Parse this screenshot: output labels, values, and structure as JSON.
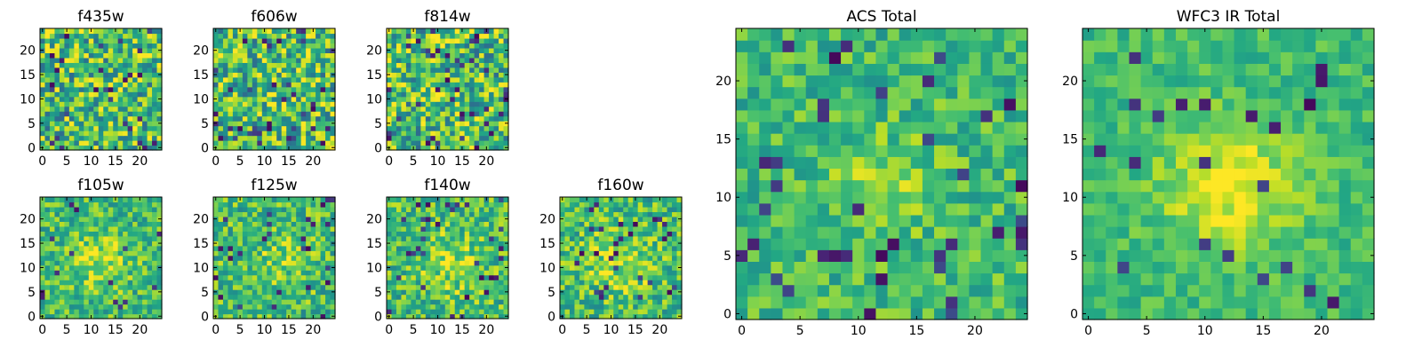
{
  "figure": {
    "colormap": "viridis",
    "colors": {
      "low": "#440154",
      "mid_low": "#31688e",
      "mid": "#21908d",
      "mid_high": "#5ec962",
      "high": "#fde725"
    }
  },
  "chart_data": [
    {
      "type": "heatmap",
      "title": "f435w",
      "grid": 25,
      "xlim": [
        0,
        24
      ],
      "ylim": [
        0,
        24
      ],
      "xticks": [
        0,
        5,
        10,
        15,
        20
      ],
      "yticks": [
        0,
        5,
        10,
        15,
        20
      ],
      "noise": 0.34,
      "blob_amp": 0.02,
      "blob_sigma": 4,
      "blob_center": [
        12,
        12
      ],
      "dark_frac": 0.06
    },
    {
      "type": "heatmap",
      "title": "f606w",
      "grid": 25,
      "xlim": [
        0,
        24
      ],
      "ylim": [
        0,
        24
      ],
      "xticks": [
        0,
        5,
        10,
        15,
        20
      ],
      "yticks": [
        0,
        5,
        10,
        15,
        20
      ],
      "noise": 0.34,
      "blob_amp": 0.05,
      "blob_sigma": 4,
      "blob_center": [
        12,
        12
      ],
      "dark_frac": 0.06
    },
    {
      "type": "heatmap",
      "title": "f814w",
      "grid": 25,
      "xlim": [
        0,
        24
      ],
      "ylim": [
        0,
        24
      ],
      "xticks": [
        0,
        5,
        10,
        15,
        20
      ],
      "yticks": [
        0,
        5,
        10,
        15,
        20
      ],
      "noise": 0.34,
      "blob_amp": 0.08,
      "blob_sigma": 4,
      "blob_center": [
        12,
        12
      ],
      "dark_frac": 0.07
    },
    {
      "type": "heatmap",
      "title": "f105w",
      "grid": 25,
      "xlim": [
        0,
        24
      ],
      "ylim": [
        0,
        24
      ],
      "xticks": [
        0,
        5,
        10,
        15,
        20
      ],
      "yticks": [
        0,
        5,
        10,
        15,
        20
      ],
      "noise": 0.22,
      "blob_amp": 0.22,
      "blob_sigma": 4,
      "blob_center": [
        12,
        11
      ],
      "dark_frac": 0.03
    },
    {
      "type": "heatmap",
      "title": "f125w",
      "grid": 25,
      "xlim": [
        0,
        24
      ],
      "ylim": [
        0,
        24
      ],
      "xticks": [
        0,
        5,
        10,
        15,
        20
      ],
      "yticks": [
        0,
        5,
        10,
        15,
        20
      ],
      "noise": 0.24,
      "blob_amp": 0.12,
      "blob_sigma": 5,
      "blob_center": [
        12,
        11
      ],
      "dark_frac": 0.05
    },
    {
      "type": "heatmap",
      "title": "f140w",
      "grid": 25,
      "xlim": [
        0,
        24
      ],
      "ylim": [
        0,
        24
      ],
      "xticks": [
        0,
        5,
        10,
        15,
        20
      ],
      "yticks": [
        0,
        5,
        10,
        15,
        20
      ],
      "noise": 0.24,
      "blob_amp": 0.18,
      "blob_sigma": 5,
      "blob_center": [
        13,
        11
      ],
      "dark_frac": 0.04
    },
    {
      "type": "heatmap",
      "title": "f160w",
      "grid": 25,
      "xlim": [
        0,
        24
      ],
      "ylim": [
        0,
        24
      ],
      "xticks": [
        0,
        5,
        10,
        15,
        20
      ],
      "yticks": [
        0,
        5,
        10,
        15,
        20
      ],
      "noise": 0.24,
      "blob_amp": 0.2,
      "blob_sigma": 5,
      "blob_center": [
        12,
        11
      ],
      "dark_frac": 0.05
    },
    {
      "type": "heatmap",
      "title": "ACS Total",
      "grid": 25,
      "xlim": [
        0,
        24
      ],
      "ylim": [
        0,
        24
      ],
      "xticks": [
        0,
        5,
        10,
        15,
        20
      ],
      "yticks": [
        0,
        5,
        10,
        15,
        20
      ],
      "noise": 0.18,
      "blob_amp": 0.18,
      "blob_sigma": 3,
      "blob_center": [
        12,
        11
      ],
      "dark_frac": 0.05
    },
    {
      "type": "heatmap",
      "title": "WFC3 IR Total",
      "grid": 25,
      "xlim": [
        0,
        24
      ],
      "ylim": [
        0,
        24
      ],
      "xticks": [
        0,
        5,
        10,
        15,
        20
      ],
      "yticks": [
        0,
        5,
        10,
        15,
        20
      ],
      "noise": 0.12,
      "blob_amp": 0.3,
      "blob_sigma": 4,
      "blob_center": [
        12,
        11
      ],
      "dark_frac": 0.03
    }
  ]
}
